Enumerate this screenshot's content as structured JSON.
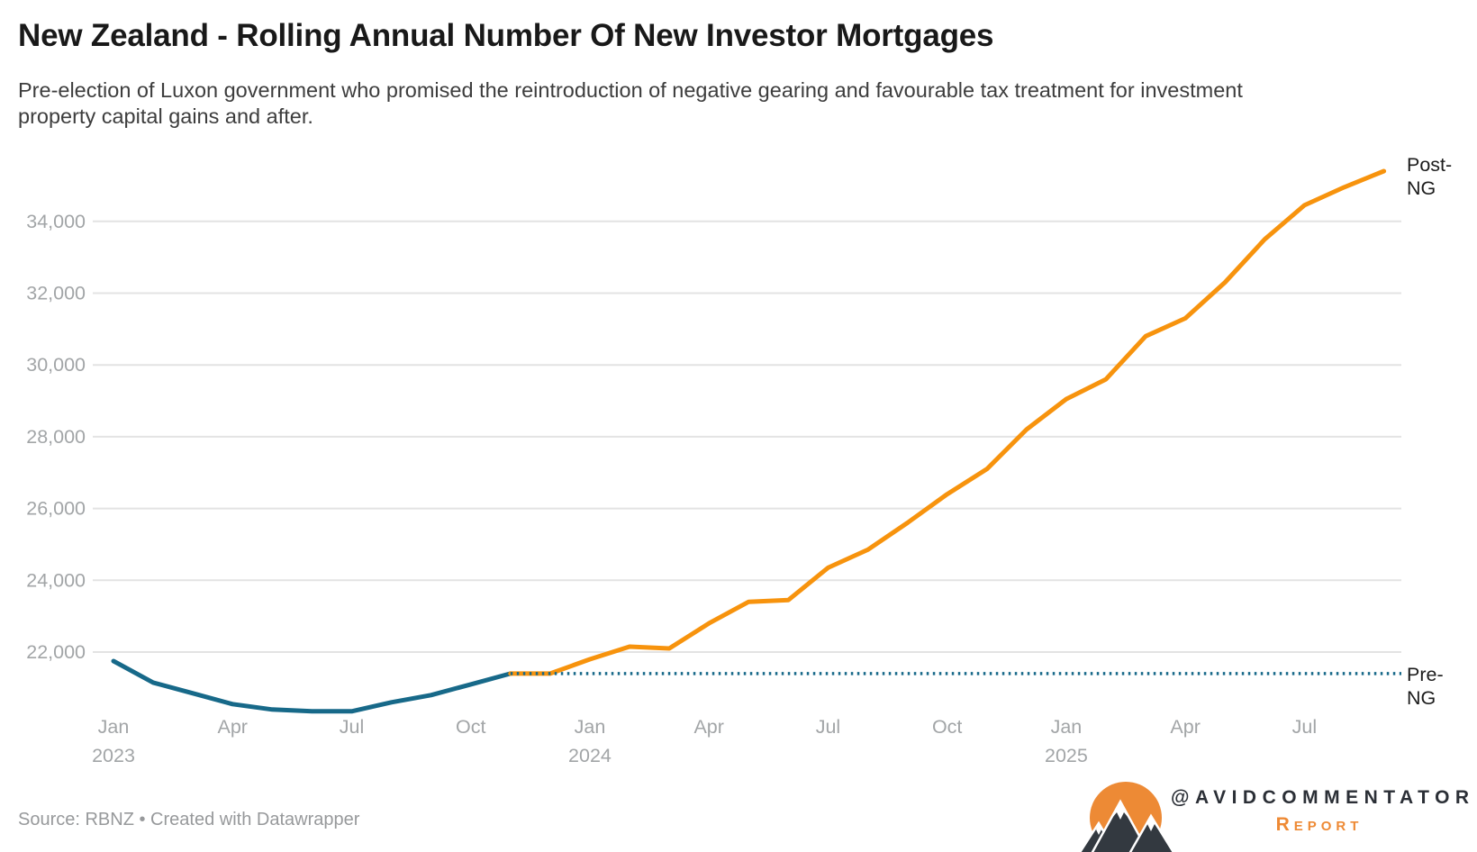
{
  "header": {
    "title": "New Zealand - Rolling Annual Number Of New Investor Mortgages",
    "subtitle": "Pre-election of Luxon government who promised the reintroduction of negative gearing and favourable tax treatment for investment property capital gains and after."
  },
  "chart_data": {
    "type": "line",
    "title": "New Zealand - Rolling Annual Number Of New Investor Mortgages",
    "xlabel": "",
    "ylabel": "",
    "grid": "horizontal",
    "ylim": [
      20300,
      35600
    ],
    "y_ticks": [
      {
        "value": 22000,
        "label": "22,000"
      },
      {
        "value": 24000,
        "label": "24,000"
      },
      {
        "value": 26000,
        "label": "26,000"
      },
      {
        "value": 28000,
        "label": "28,000"
      },
      {
        "value": 30000,
        "label": "30,000"
      },
      {
        "value": 32000,
        "label": "32,000"
      },
      {
        "value": 34000,
        "label": "34,000"
      }
    ],
    "x_ticks": [
      {
        "month_index": 0,
        "label": "Jan",
        "year": "2023"
      },
      {
        "month_index": 3,
        "label": "Apr"
      },
      {
        "month_index": 6,
        "label": "Jul"
      },
      {
        "month_index": 9,
        "label": "Oct"
      },
      {
        "month_index": 12,
        "label": "Jan",
        "year": "2024"
      },
      {
        "month_index": 15,
        "label": "Apr"
      },
      {
        "month_index": 18,
        "label": "Jul"
      },
      {
        "month_index": 21,
        "label": "Oct"
      },
      {
        "month_index": 24,
        "label": "Jan",
        "year": "2025"
      },
      {
        "month_index": 27,
        "label": "Apr"
      },
      {
        "month_index": 30,
        "label": "Jul"
      }
    ],
    "series": [
      {
        "name": "Pre-NG",
        "color": "#176989",
        "style": "solid",
        "points": [
          {
            "month": "2023-01",
            "month_index": 0,
            "value": 21750
          },
          {
            "month": "2023-02",
            "month_index": 1,
            "value": 21150
          },
          {
            "month": "2023-03",
            "month_index": 2,
            "value": 20850
          },
          {
            "month": "2023-04",
            "month_index": 3,
            "value": 20550
          },
          {
            "month": "2023-05",
            "month_index": 4,
            "value": 20400
          },
          {
            "month": "2023-06",
            "month_index": 5,
            "value": 20350
          },
          {
            "month": "2023-07",
            "month_index": 6,
            "value": 20350
          },
          {
            "month": "2023-08",
            "month_index": 7,
            "value": 20600
          },
          {
            "month": "2023-09",
            "month_index": 8,
            "value": 20800
          },
          {
            "month": "2023-10",
            "month_index": 9,
            "value": 21100
          },
          {
            "month": "2023-11",
            "month_index": 10,
            "value": 21400
          }
        ]
      },
      {
        "name": "Post-NG",
        "color": "#f7930d",
        "style": "solid",
        "points": [
          {
            "month": "2023-11",
            "month_index": 10,
            "value": 21400
          },
          {
            "month": "2023-12",
            "month_index": 11,
            "value": 21400
          },
          {
            "month": "2024-01",
            "month_index": 12,
            "value": 21800
          },
          {
            "month": "2024-02",
            "month_index": 13,
            "value": 22150
          },
          {
            "month": "2024-03",
            "month_index": 14,
            "value": 22100
          },
          {
            "month": "2024-04",
            "month_index": 15,
            "value": 22800
          },
          {
            "month": "2024-05",
            "month_index": 16,
            "value": 23400
          },
          {
            "month": "2024-06",
            "month_index": 17,
            "value": 23450
          },
          {
            "month": "2024-07",
            "month_index": 18,
            "value": 24350
          },
          {
            "month": "2024-08",
            "month_index": 19,
            "value": 24850
          },
          {
            "month": "2024-09",
            "month_index": 20,
            "value": 25600
          },
          {
            "month": "2024-10",
            "month_index": 21,
            "value": 26400
          },
          {
            "month": "2024-11",
            "month_index": 22,
            "value": 27100
          },
          {
            "month": "2024-12",
            "month_index": 23,
            "value": 28200
          },
          {
            "month": "2025-01",
            "month_index": 24,
            "value": 29050
          },
          {
            "month": "2025-02",
            "month_index": 25,
            "value": 29600
          },
          {
            "month": "2025-03",
            "month_index": 26,
            "value": 30800
          },
          {
            "month": "2025-04",
            "month_index": 27,
            "value": 31300
          },
          {
            "month": "2025-05",
            "month_index": 28,
            "value": 32300
          },
          {
            "month": "2025-06",
            "month_index": 29,
            "value": 33500
          },
          {
            "month": "2025-07",
            "month_index": 30,
            "value": 34450
          },
          {
            "month": "2025-08",
            "month_index": 31,
            "value": 34950
          },
          {
            "month": "2025-09",
            "month_index": 32,
            "value": 35400
          }
        ]
      }
    ],
    "reference_line": {
      "label": "Pre-NG",
      "value": 21400,
      "from_month_index": 10,
      "style": "dotted",
      "color": "#176989"
    },
    "annotations": {
      "post_label": "Post-NG",
      "pre_label": "Pre-NG"
    },
    "colors": {
      "gridline": "#e3e3e3",
      "axis_text": "#a2a5a7",
      "pre_line": "#176989",
      "post_line": "#f7930d"
    }
  },
  "footer": {
    "source_line": "Source: RBNZ • Created with Datawrapper"
  },
  "branding": {
    "logo": "mountain-sun-logo",
    "handle": "@AVIDCOMMENTATOR",
    "sub": "Report",
    "handle_color": "#2b2f36",
    "accent_color": "#ee8a35"
  }
}
